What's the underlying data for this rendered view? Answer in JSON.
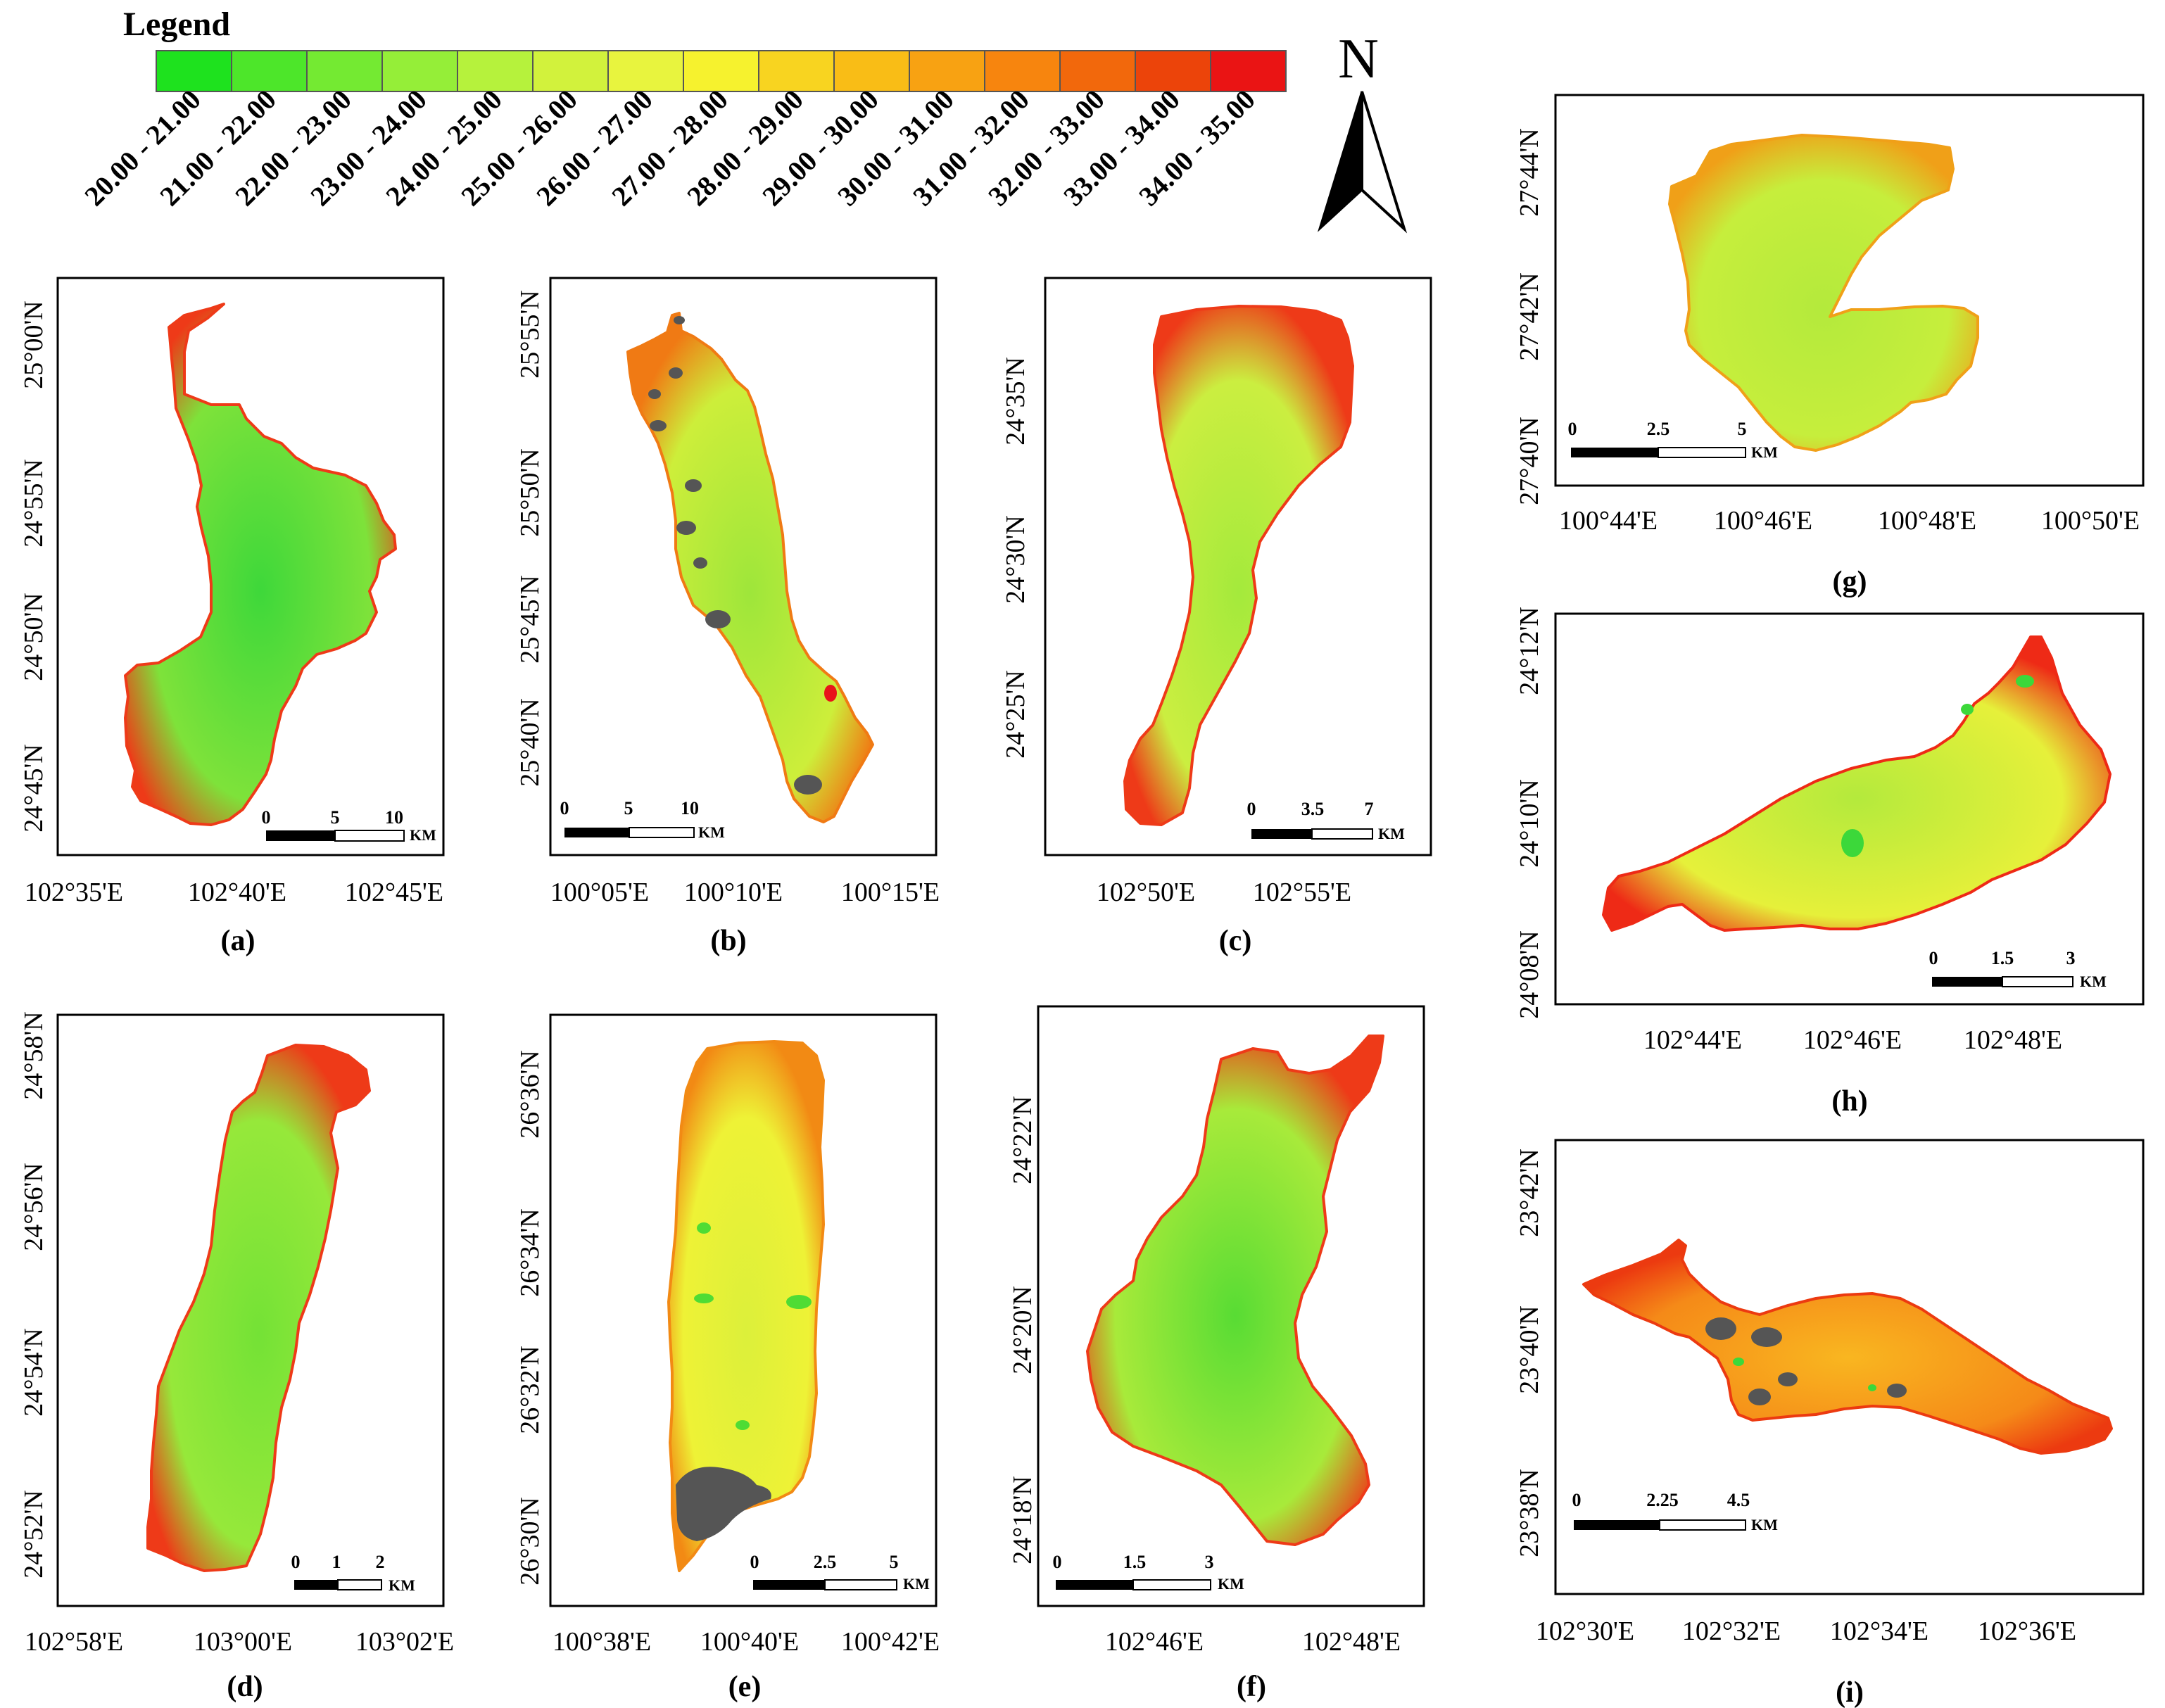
{
  "legend": {
    "title": "Legend",
    "classes": [
      {
        "label": "20.00 - 21.00",
        "color": "#1ee21e"
      },
      {
        "label": "21.00 - 22.00",
        "color": "#4de62a"
      },
      {
        "label": "22.00 - 23.00",
        "color": "#74ea32"
      },
      {
        "label": "23.00 - 24.00",
        "color": "#95ee38"
      },
      {
        "label": "24.00 - 25.00",
        "color": "#b6f23c"
      },
      {
        "label": "25.00 - 26.00",
        "color": "#d2f23c"
      },
      {
        "label": "26.00 - 27.00",
        "color": "#e8f43e"
      },
      {
        "label": "27.00 - 28.00",
        "color": "#f6f22e"
      },
      {
        "label": "28.00 - 29.00",
        "color": "#f8d420"
      },
      {
        "label": "29.00 - 30.00",
        "color": "#f9bd16"
      },
      {
        "label": "30.00 - 31.00",
        "color": "#f8a212"
      },
      {
        "label": "31.00 - 32.00",
        "color": "#f7850e"
      },
      {
        "label": "32.00 - 33.00",
        "color": "#f2680c"
      },
      {
        "label": "33.00 - 34.00",
        "color": "#ec440a"
      },
      {
        "label": "34.00 - 35.00",
        "color": "#ea1414"
      }
    ]
  },
  "north_arrow": {
    "label": "N"
  },
  "scale_unit": "KM",
  "nodata_color": "#555555",
  "panels": {
    "a": {
      "label": "(a)",
      "scale": [
        "0",
        "5",
        "10"
      ],
      "lat_ticks": [
        "25°00'N",
        "24°55'N",
        "24°50'N",
        "24°45'N"
      ],
      "lon_ticks": [
        "102°35'E",
        "102°40'E",
        "102°45'E"
      ],
      "shore_color": "#ee3a18",
      "body_color": "#7ee23a",
      "center_color": "#3ed83a"
    },
    "b": {
      "label": "(b)",
      "scale": [
        "0",
        "5",
        "10"
      ],
      "lat_ticks": [
        "25°55'N",
        "25°50'N",
        "25°45'N",
        "25°40'N"
      ],
      "lon_ticks": [
        "100°05'E",
        "100°10'E",
        "100°15'E"
      ],
      "shore_color": "#f07a14",
      "body_color": "#cdee3a",
      "center_color": "#9ee63a"
    },
    "c": {
      "label": "(c)",
      "scale": [
        "0",
        "3.5",
        "7"
      ],
      "lat_ticks": [
        "24°35'N",
        "24°30'N",
        "24°25'N"
      ],
      "lon_ticks": [
        "102°50'E",
        "102°55'E"
      ],
      "shore_color": "#ee3a18",
      "body_color": "#cbee40",
      "center_color": "#a4ea3c"
    },
    "d": {
      "label": "(d)",
      "scale": [
        "0",
        "1",
        "2"
      ],
      "lat_ticks": [
        "24°58'N",
        "24°56'N",
        "24°54'N",
        "24°52'N"
      ],
      "lon_ticks": [
        "102°58'E",
        "103°00'E",
        "103°02'E"
      ],
      "shore_color": "#ee3a18",
      "body_color": "#96e83a",
      "center_color": "#74e236"
    },
    "e": {
      "label": "(e)",
      "scale": [
        "0",
        "2.5",
        "5"
      ],
      "lat_ticks": [
        "26°36'N",
        "26°34'N",
        "26°32'N",
        "26°30'N"
      ],
      "lon_ticks": [
        "100°38'E",
        "100°40'E",
        "100°42'E"
      ],
      "shore_color": "#f28a14",
      "body_color": "#eef236",
      "center_color": "#dcf03a"
    },
    "f": {
      "label": "(f)",
      "scale": [
        "0",
        "1.5",
        "3"
      ],
      "lat_ticks": [
        "24°22'N",
        "24°20'N",
        "24°18'N"
      ],
      "lon_ticks": [
        "102°46'E",
        "102°48'E"
      ],
      "shore_color": "#ee3a18",
      "body_color": "#a8ea3a",
      "center_color": "#58dc34"
    },
    "g": {
      "label": "(g)",
      "scale": [
        "0",
        "2.5",
        "5"
      ],
      "lat_ticks": [
        "27°44'N",
        "27°42'N",
        "27°40'N"
      ],
      "lon_ticks": [
        "100°44'E",
        "100°46'E",
        "100°48'E",
        "100°50'E"
      ],
      "shore_color": "#f0a018",
      "body_color": "#c6ee3c",
      "center_color": "#b4ea3c"
    },
    "h": {
      "label": "(h)",
      "scale": [
        "0",
        "1.5",
        "3"
      ],
      "lat_ticks": [
        "24°12'N",
        "24°10'N",
        "24°08'N"
      ],
      "lon_ticks": [
        "102°44'E",
        "102°46'E",
        "102°48'E"
      ],
      "shore_color": "#ee2a16",
      "body_color": "#e6f03a",
      "center_color": "#b4ea3c"
    },
    "i": {
      "label": "(i)",
      "scale": [
        "0",
        "2.25",
        "4.5"
      ],
      "lat_ticks": [
        "23°42'N",
        "23°40'N",
        "23°38'N"
      ],
      "lon_ticks": [
        "102°30'E",
        "102°32'E",
        "102°34'E",
        "102°36'E"
      ],
      "shore_color": "#ec3a10",
      "body_color": "#f58a18",
      "center_color": "#f9b620"
    }
  }
}
